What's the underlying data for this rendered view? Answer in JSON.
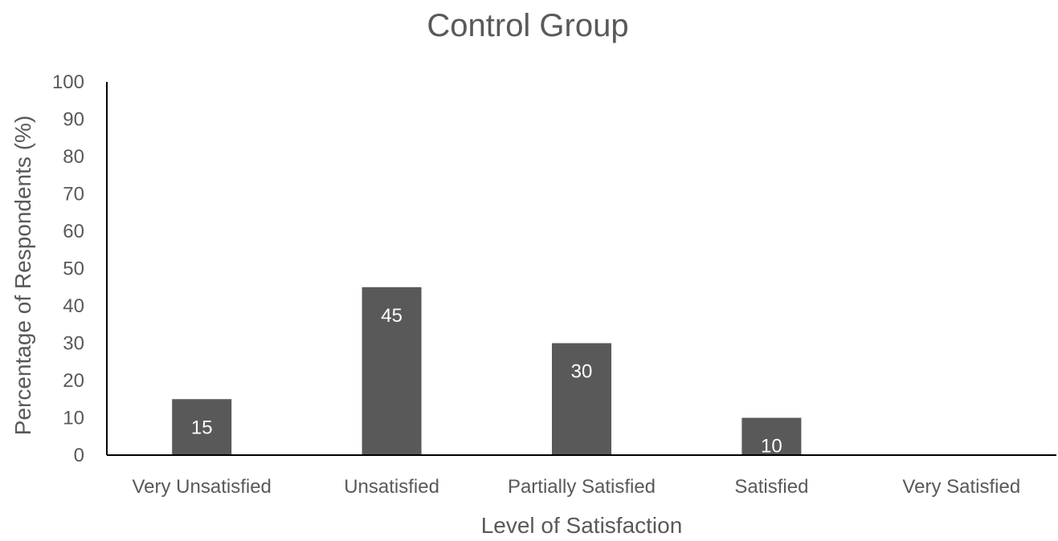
{
  "chart_data": {
    "type": "bar",
    "title": "Control Group",
    "xlabel": "Level of Satisfaction",
    "ylabel": "Percentage of Respondents (%)",
    "categories": [
      "Very Unsatisfied",
      "Unsatisfied",
      "Partially Satisfied",
      "Satisfied",
      "Very Satisfied"
    ],
    "values": [
      15,
      45,
      30,
      10,
      0
    ],
    "data_labels": [
      "15",
      "45",
      "30",
      "10",
      ""
    ],
    "ylim": [
      0,
      100
    ],
    "yticks": [
      "0",
      "10",
      "20",
      "30",
      "40",
      "50",
      "60",
      "70",
      "80",
      "90",
      "100"
    ],
    "grid": false,
    "legend": "none",
    "bar_color": "#595959",
    "text_color": "#595959",
    "axis_color": "#000000"
  }
}
